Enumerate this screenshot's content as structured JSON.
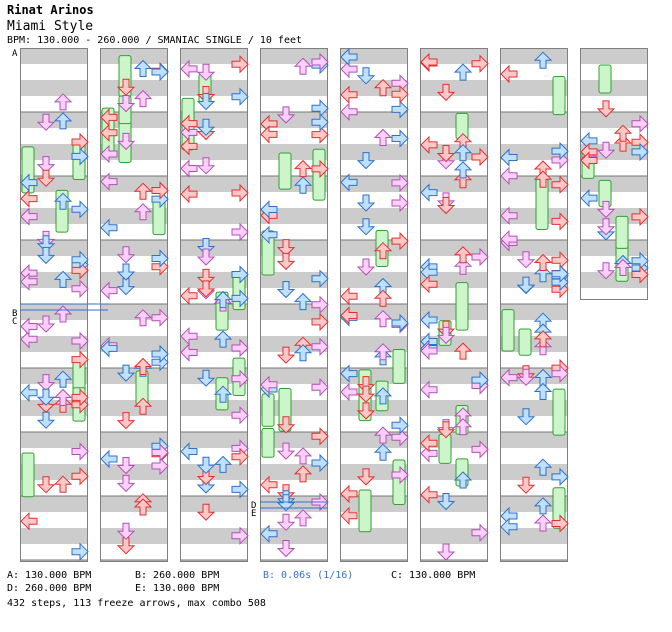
{
  "header": {
    "artist": "Rinat Arinos",
    "title": "Miami Style",
    "meta": "BPM: 130.000 - 260.000 / SMANIAC SINGLE / 10 feet"
  },
  "markers": {
    "A": "A",
    "B": "B",
    "C": "C",
    "D": "D",
    "E": "E"
  },
  "legend": {
    "a": "A: 130.000 BPM",
    "b": "B: 260.000 BPM",
    "stop": "B: 0.06s (1/16)",
    "c": "C: 130.000 BPM",
    "d": "D: 260.000 BPM",
    "e": "E: 130.000 BPM"
  },
  "summary": "432 steps, 113 freeze arrows, max combo 508",
  "colors": {
    "stripe": "#cccccc",
    "border": "#808080",
    "quarter_fill": "#ffc8c8",
    "quarter_stroke": "#e03030",
    "eighth_fill": "#bfe0ff",
    "eighth_stroke": "#3070c8",
    "sixteenth_fill": "#ffd0ff",
    "sixteenth_stroke": "#b050b0",
    "freeze_fill": "#ccf5cc",
    "freeze_stroke": "#30a030",
    "bpm_line": "#3a6fd0"
  }
}
